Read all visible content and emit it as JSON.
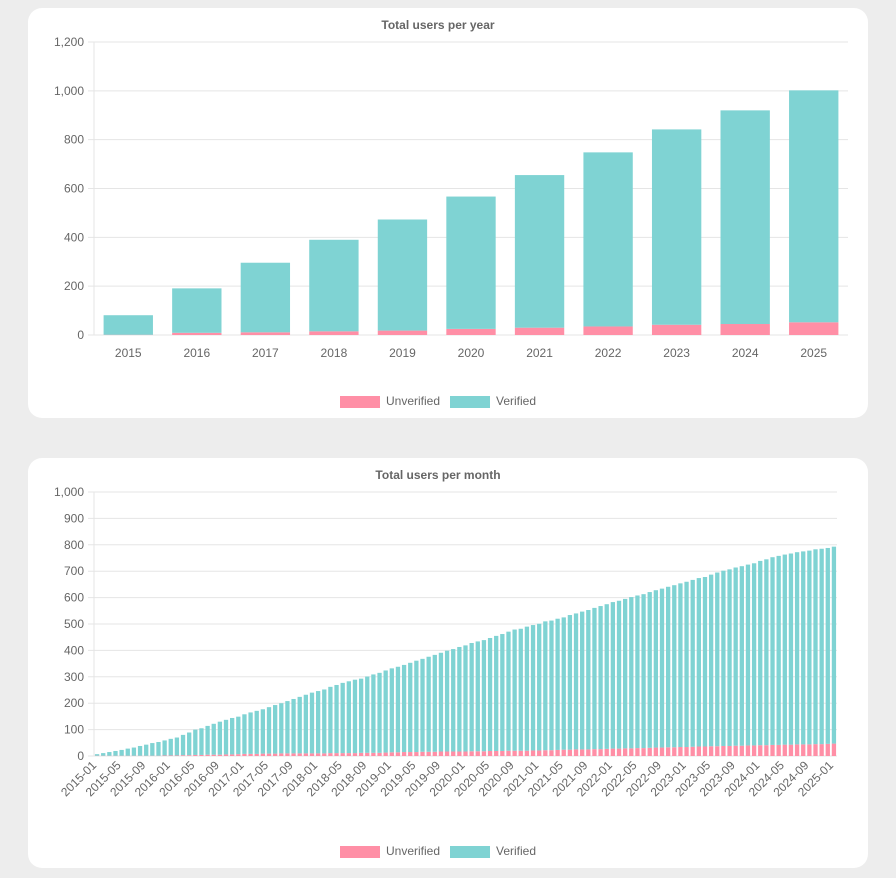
{
  "colors": {
    "unverified_fill": "#ff8fa6",
    "verified_fill": "#7fd3d3",
    "grid": "#e5e5e5",
    "text": "#666666"
  },
  "chart_data": [
    {
      "type": "bar",
      "stacked": true,
      "title": "Total users per year",
      "categories": [
        "2015",
        "2016",
        "2017",
        "2018",
        "2019",
        "2020",
        "2021",
        "2022",
        "2023",
        "2024",
        "2025"
      ],
      "series": [
        {
          "name": "Unverified",
          "values": [
            1,
            9,
            11,
            15,
            18,
            25,
            30,
            35,
            42,
            45,
            52
          ]
        },
        {
          "name": "Verified",
          "values": [
            80,
            182,
            285,
            375,
            455,
            542,
            625,
            713,
            800,
            875,
            950
          ]
        }
      ],
      "ylim": [
        0,
        1200
      ],
      "yticks": [
        "0",
        "200",
        "400",
        "600",
        "800",
        "1,000",
        "1,200"
      ],
      "grid": true,
      "legend": "bottom"
    },
    {
      "type": "bar",
      "stacked": true,
      "title": "Total users per month",
      "start_month": "2015-01",
      "months": 121,
      "tick_labels": [
        "2015-01",
        "2015-05",
        "2015-09",
        "2016-01",
        "2016-05",
        "2016-09",
        "2017-01",
        "2017-05",
        "2017-09",
        "2018-01",
        "2018-05",
        "2018-09",
        "2019-01",
        "2019-05",
        "2019-09",
        "2020-01",
        "2020-05",
        "2020-09",
        "2021-01",
        "2021-05",
        "2021-09",
        "2022-01",
        "2022-05",
        "2022-09",
        "2023-01",
        "2023-05",
        "2023-09",
        "2024-01",
        "2024-05",
        "2024-09",
        "2025-01"
      ],
      "series": [
        {
          "name": "Unverified",
          "values": [
            1,
            1,
            1,
            1,
            1,
            1,
            1,
            1,
            1,
            1,
            1,
            2,
            2,
            2,
            3,
            3,
            4,
            4,
            5,
            5,
            5,
            6,
            6,
            7,
            8,
            8,
            8,
            9,
            9,
            9,
            10,
            10,
            10,
            10,
            10,
            10,
            10,
            10,
            11,
            11,
            11,
            11,
            11,
            12,
            12,
            12,
            12,
            13,
            14,
            14,
            15,
            15,
            15,
            16,
            16,
            16,
            17,
            17,
            17,
            17,
            17,
            18,
            18,
            18,
            19,
            19,
            19,
            20,
            20,
            20,
            20,
            21,
            21,
            22,
            22,
            23,
            24,
            24,
            25,
            25,
            25,
            26,
            26,
            27,
            28,
            28,
            29,
            29,
            30,
            30,
            31,
            32,
            32,
            33,
            33,
            34,
            34,
            35,
            36,
            36,
            37,
            37,
            38,
            38,
            39,
            39,
            40,
            40,
            41,
            41,
            42,
            42,
            43,
            43,
            44,
            44,
            44,
            45,
            45,
            46,
            47
          ]
        },
        {
          "name": "Verified",
          "values": [
            6,
            10,
            14,
            18,
            22,
            27,
            31,
            37,
            42,
            48,
            52,
            57,
            63,
            68,
            77,
            86,
            96,
            101,
            109,
            117,
            125,
            131,
            138,
            142,
            150,
            157,
            163,
            168,
            176,
            184,
            190,
            198,
            206,
            214,
            222,
            230,
            236,
            242,
            251,
            258,
            266,
            272,
            278,
            281,
            289,
            297,
            303,
            311,
            318,
            324,
            330,
            338,
            346,
            352,
            360,
            367,
            374,
            382,
            388,
            396,
            402,
            410,
            416,
            421,
            428,
            436,
            443,
            451,
            459,
            462,
            470,
            475,
            480,
            488,
            491,
            497,
            501,
            510,
            515,
            522,
            528,
            535,
            542,
            548,
            555,
            560,
            566,
            573,
            578,
            583,
            590,
            596,
            602,
            608,
            614,
            620,
            626,
            632,
            638,
            642,
            650,
            658,
            664,
            669,
            675,
            680,
            685,
            690,
            698,
            704,
            711,
            716,
            720,
            724,
            728,
            731,
            734,
            738,
            740,
            742,
            746
          ]
        }
      ],
      "ylim": [
        0,
        1000
      ],
      "yticks": [
        "0",
        "100",
        "200",
        "300",
        "400",
        "500",
        "600",
        "700",
        "800",
        "900",
        "1,000"
      ],
      "grid": true,
      "legend": "bottom"
    }
  ]
}
